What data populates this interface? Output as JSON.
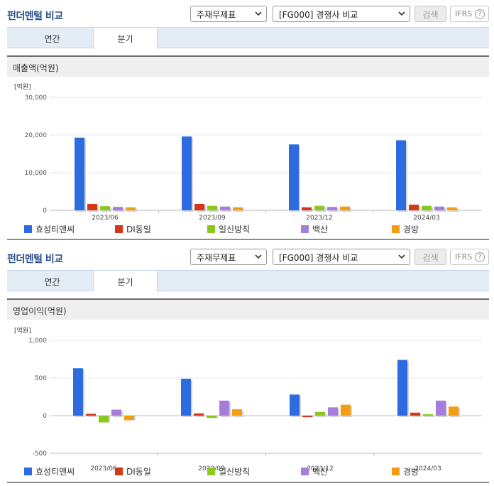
{
  "colors": {
    "series": [
      "#2d6be0",
      "#d6361a",
      "#8bc81e",
      "#a77ddb",
      "#f59d11"
    ],
    "title": "#2a4e8c"
  },
  "icons": {
    "select_arrow": "chevron-down-icon",
    "ifrs_help": "question-circle-icon"
  },
  "panels": [
    {
      "title": "펀더멘털 비교",
      "select_theme": "주재무제표",
      "select_compare": "[FG000] 경쟁사 비교",
      "search_label": "검색",
      "ifrs_label": "IFRS",
      "ifrs_help": "?",
      "tabs": [
        {
          "label": "연간"
        },
        {
          "label": "분기"
        }
      ],
      "active_tab": "분기",
      "metric": "매출액(억원)",
      "chart_data": {
        "type": "bar",
        "unit_label": "[억원]",
        "categories": [
          "2023/06",
          "2023/09",
          "2023/12",
          "2024/03"
        ],
        "y_ticks": [
          "30,000",
          "20,000",
          "10,000",
          "0"
        ],
        "ylim": [
          0,
          30000
        ],
        "legend_position": "bottom",
        "grid": true,
        "series": [
          {
            "name": "효성티앤씨",
            "values": [
              19300,
              19600,
              17500,
              18600
            ]
          },
          {
            "name": "DI동일",
            "values": [
              1700,
              1700,
              800,
              1500
            ]
          },
          {
            "name": "일신방직",
            "values": [
              1100,
              1200,
              1200,
              1200
            ]
          },
          {
            "name": "백산",
            "values": [
              900,
              1000,
              900,
              1000
            ]
          },
          {
            "name": "경방",
            "values": [
              800,
              800,
              1000,
              800
            ]
          }
        ]
      }
    },
    {
      "title": "펀더멘털 비교",
      "select_theme": "주재무제표",
      "select_compare": "[FG000] 경쟁사 비교",
      "search_label": "검색",
      "ifrs_label": "IFRS",
      "ifrs_help": "?",
      "tabs": [
        {
          "label": "연간"
        },
        {
          "label": "분기"
        }
      ],
      "active_tab": "분기",
      "metric": "영업이익(억원)",
      "chart_data": {
        "type": "bar",
        "unit_label": "[억원]",
        "categories": [
          "2023/06",
          "2023/09",
          "2023/12",
          "2024/03"
        ],
        "y_ticks": [
          "1,000",
          "500",
          "0",
          "-500"
        ],
        "ylim": [
          -500,
          1000
        ],
        "legend_position": "bottom",
        "grid": true,
        "series": [
          {
            "name": "효성티앤씨",
            "values": [
              630,
              490,
              280,
              740
            ]
          },
          {
            "name": "DI동일",
            "values": [
              25,
              30,
              -20,
              40
            ]
          },
          {
            "name": "일신방직",
            "values": [
              -90,
              -30,
              50,
              20
            ]
          },
          {
            "name": "백산",
            "values": [
              80,
              200,
              110,
              200
            ]
          },
          {
            "name": "경방",
            "values": [
              -60,
              85,
              145,
              120
            ]
          }
        ]
      }
    }
  ]
}
